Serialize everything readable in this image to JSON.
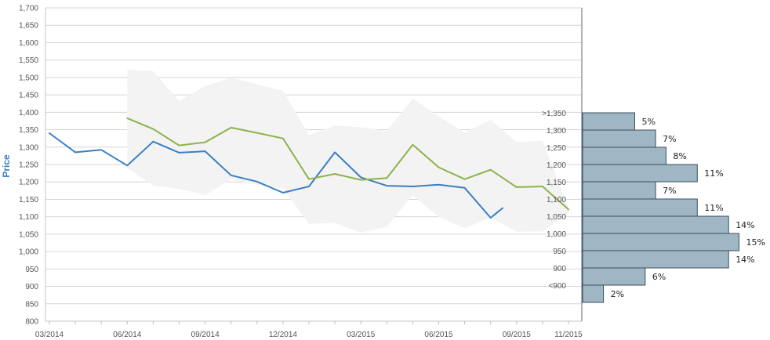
{
  "chart_data": [
    {
      "type": "line",
      "title": "",
      "ylabel": "Price",
      "ylabel_color": "#3a7fc4",
      "ylim": [
        800,
        1700
      ],
      "y_ticks": [
        "1,700",
        "1,650",
        "1,600",
        "1,550",
        "1,500",
        "1,450",
        "1,400",
        "1,350",
        "1,300",
        "1,250",
        "1,200",
        "1,150",
        "1,100",
        "1,050",
        "1,000",
        "950",
        "900",
        "850",
        "800"
      ],
      "x_tick_labels": [
        "03/2014",
        "06/2014",
        "09/2014",
        "12/2014",
        "03/2015",
        "06/2015",
        "09/2015",
        "11/2015"
      ],
      "grid": true,
      "series": [
        {
          "color": "#3a7fc4",
          "x": [
            "2014-03",
            "2014-04",
            "2014-05",
            "2014-06",
            "2014-07",
            "2014-08",
            "2014-09",
            "2014-10",
            "2014-11",
            "2014-12",
            "2015-01",
            "2015-02",
            "2015-03",
            "2015-04",
            "2015-05",
            "2015-06",
            "2015-07",
            "2015-08",
            "2015-08-15"
          ],
          "values": [
            1340,
            1285,
            1292,
            1247,
            1316,
            1284,
            1288,
            1219,
            1201,
            1169,
            1187,
            1285,
            1213,
            1189,
            1187,
            1192,
            1183,
            1097,
            1125
          ]
        },
        {
          "color": "#8db24c",
          "x": [
            "2014-06",
            "2014-07",
            "2014-08",
            "2014-09",
            "2014-10",
            "2014-11",
            "2014-12",
            "2015-01",
            "2015-02",
            "2015-03",
            "2015-04",
            "2015-05",
            "2015-06",
            "2015-07",
            "2015-08",
            "2015-09",
            "2015-10",
            "2015-11"
          ],
          "values": [
            1383,
            1352,
            1305,
            1314,
            1356,
            1341,
            1325,
            1208,
            1223,
            1206,
            1211,
            1307,
            1242,
            1208,
            1235,
            1185,
            1187,
            1121
          ]
        }
      ],
      "band": {
        "color": "#f3f3f3",
        "x": [
          "2014-06",
          "2014-07",
          "2014-08",
          "2014-09",
          "2014-10",
          "2014-11",
          "2014-12",
          "2015-01",
          "2015-02",
          "2015-03",
          "2015-04",
          "2015-05",
          "2015-06",
          "2015-07",
          "2015-08",
          "2015-09",
          "2015-10",
          "2015-11"
        ],
        "upper": [
          1522,
          1518,
          1432,
          1475,
          1500,
          1480,
          1462,
          1335,
          1362,
          1357,
          1346,
          1440,
          1388,
          1342,
          1378,
          1315,
          1318,
          1125
        ],
        "lower": [
          1240,
          1190,
          1180,
          1162,
          1208,
          1192,
          1182,
          1080,
          1082,
          1055,
          1071,
          1162,
          1100,
          1067,
          1098,
          1057,
          1058,
          1110
        ]
      }
    },
    {
      "type": "bar",
      "orientation": "horizontal",
      "bar_color": "#9fb6c4",
      "categories": [
        ">1,350",
        "1,300",
        "1,250",
        "1,200",
        "1,150",
        "1,100",
        "1,050",
        "1,000",
        "950",
        "900",
        "<900"
      ],
      "values": [
        5,
        7,
        8,
        11,
        7,
        11,
        14,
        15,
        14,
        6,
        2
      ],
      "value_labels": [
        "5%",
        "7%",
        "8%",
        "11%",
        "7%",
        "11%",
        "14%",
        "15%",
        "14%",
        "6%",
        "2%"
      ]
    }
  ]
}
